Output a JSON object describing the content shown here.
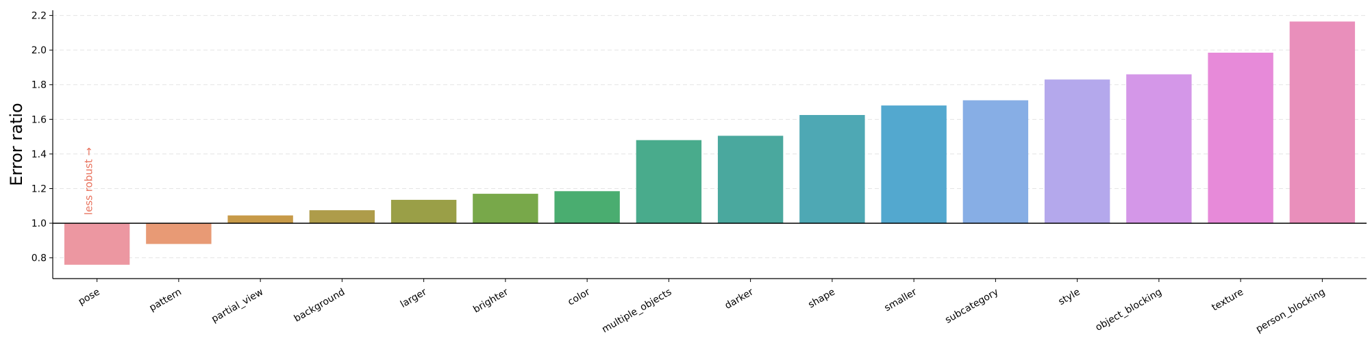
{
  "chart_data": {
    "type": "bar",
    "title": "",
    "xlabel": "",
    "ylabel": "Error ratio",
    "baseline": 1.0,
    "ylim": [
      0.68,
      2.23
    ],
    "yticks": [
      0.8,
      1.0,
      1.2,
      1.4,
      1.6,
      1.8,
      2.0,
      2.2
    ],
    "ytick_labels": [
      "0.8",
      "1.0",
      "1.2",
      "1.4",
      "1.6",
      "1.8",
      "2.0",
      "2.2"
    ],
    "grid": "horizontal dashed",
    "annotation": "less robust →",
    "categories": [
      "pose",
      "pattern",
      "partial_view",
      "background",
      "larger",
      "brighter",
      "color",
      "multiple_objects",
      "darker",
      "shape",
      "smaller",
      "subcategory",
      "style",
      "object_blocking",
      "texture",
      "person_blocking"
    ],
    "values": [
      0.76,
      0.88,
      1.045,
      1.075,
      1.135,
      1.17,
      1.185,
      1.48,
      1.505,
      1.625,
      1.68,
      1.71,
      1.83,
      1.86,
      1.985,
      2.165
    ],
    "colors": [
      "#ec97a1",
      "#e89a75",
      "#c79a48",
      "#ae9c4a",
      "#9a9f47",
      "#78a84a",
      "#4aad70",
      "#49ab8c",
      "#4aa89e",
      "#4ea8b4",
      "#53a8cf",
      "#87aee5",
      "#b4a8ec",
      "#d497e8",
      "#e78ad9",
      "#e98fbb"
    ],
    "annotation_color": "#e8735e"
  }
}
